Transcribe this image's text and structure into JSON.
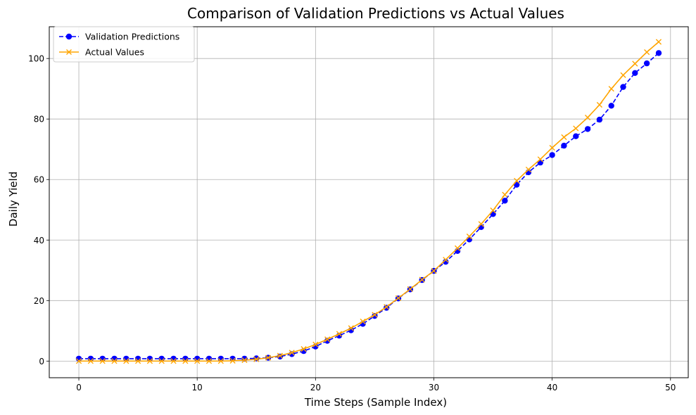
{
  "chart_data": {
    "type": "line",
    "title": "Comparison of Validation Predictions vs Actual Values",
    "xlabel": "Time Steps (Sample Index)",
    "ylabel": "Daily Yield",
    "xlim": [
      -2.5,
      51.5
    ],
    "ylim": [
      -5.5,
      110.5
    ],
    "xticks": [
      0,
      10,
      20,
      30,
      40,
      50
    ],
    "yticks": [
      0,
      20,
      40,
      60,
      80,
      100
    ],
    "grid": true,
    "legend_position": "top-left",
    "x": [
      0,
      1,
      2,
      3,
      4,
      5,
      6,
      7,
      8,
      9,
      10,
      11,
      12,
      13,
      14,
      15,
      16,
      17,
      18,
      19,
      20,
      21,
      22,
      23,
      24,
      25,
      26,
      27,
      28,
      29,
      30,
      31,
      32,
      33,
      34,
      35,
      36,
      37,
      38,
      39,
      40,
      41,
      42,
      43,
      44,
      45,
      46,
      47,
      48,
      49
    ],
    "series": [
      {
        "name": "Validation Predictions",
        "color": "#0000ff",
        "line_style": "dashed",
        "marker": "circle",
        "values": [
          0.8,
          0.8,
          0.8,
          0.8,
          0.8,
          0.8,
          0.8,
          0.8,
          0.8,
          0.8,
          0.8,
          0.8,
          0.8,
          0.8,
          0.8,
          0.9,
          1.1,
          1.5,
          2.3,
          3.3,
          4.8,
          6.7,
          8.4,
          10.2,
          12.3,
          14.9,
          17.6,
          20.7,
          23.7,
          26.8,
          29.8,
          32.8,
          36.4,
          40.2,
          44.3,
          48.6,
          53.0,
          58.3,
          62.4,
          65.6,
          68.1,
          71.2,
          74.3,
          76.7,
          79.8,
          84.4,
          90.6,
          95.2,
          98.4,
          101.8
        ]
      },
      {
        "name": "Actual Values",
        "color": "#ffa500",
        "line_style": "solid",
        "marker": "x",
        "values": [
          0.0,
          0.0,
          0.0,
          0.0,
          0.0,
          0.0,
          0.0,
          0.0,
          0.0,
          0.0,
          0.0,
          0.0,
          0.0,
          0.1,
          0.3,
          0.6,
          1.1,
          1.8,
          2.8,
          4.0,
          5.5,
          7.2,
          9.0,
          10.9,
          13.1,
          15.3,
          17.9,
          20.8,
          23.8,
          26.9,
          29.8,
          33.5,
          37.3,
          41.2,
          45.3,
          49.8,
          55.0,
          59.6,
          63.3,
          66.7,
          70.5,
          74.0,
          76.9,
          80.5,
          84.7,
          90.0,
          94.5,
          98.3,
          102.1,
          105.5
        ]
      }
    ]
  }
}
